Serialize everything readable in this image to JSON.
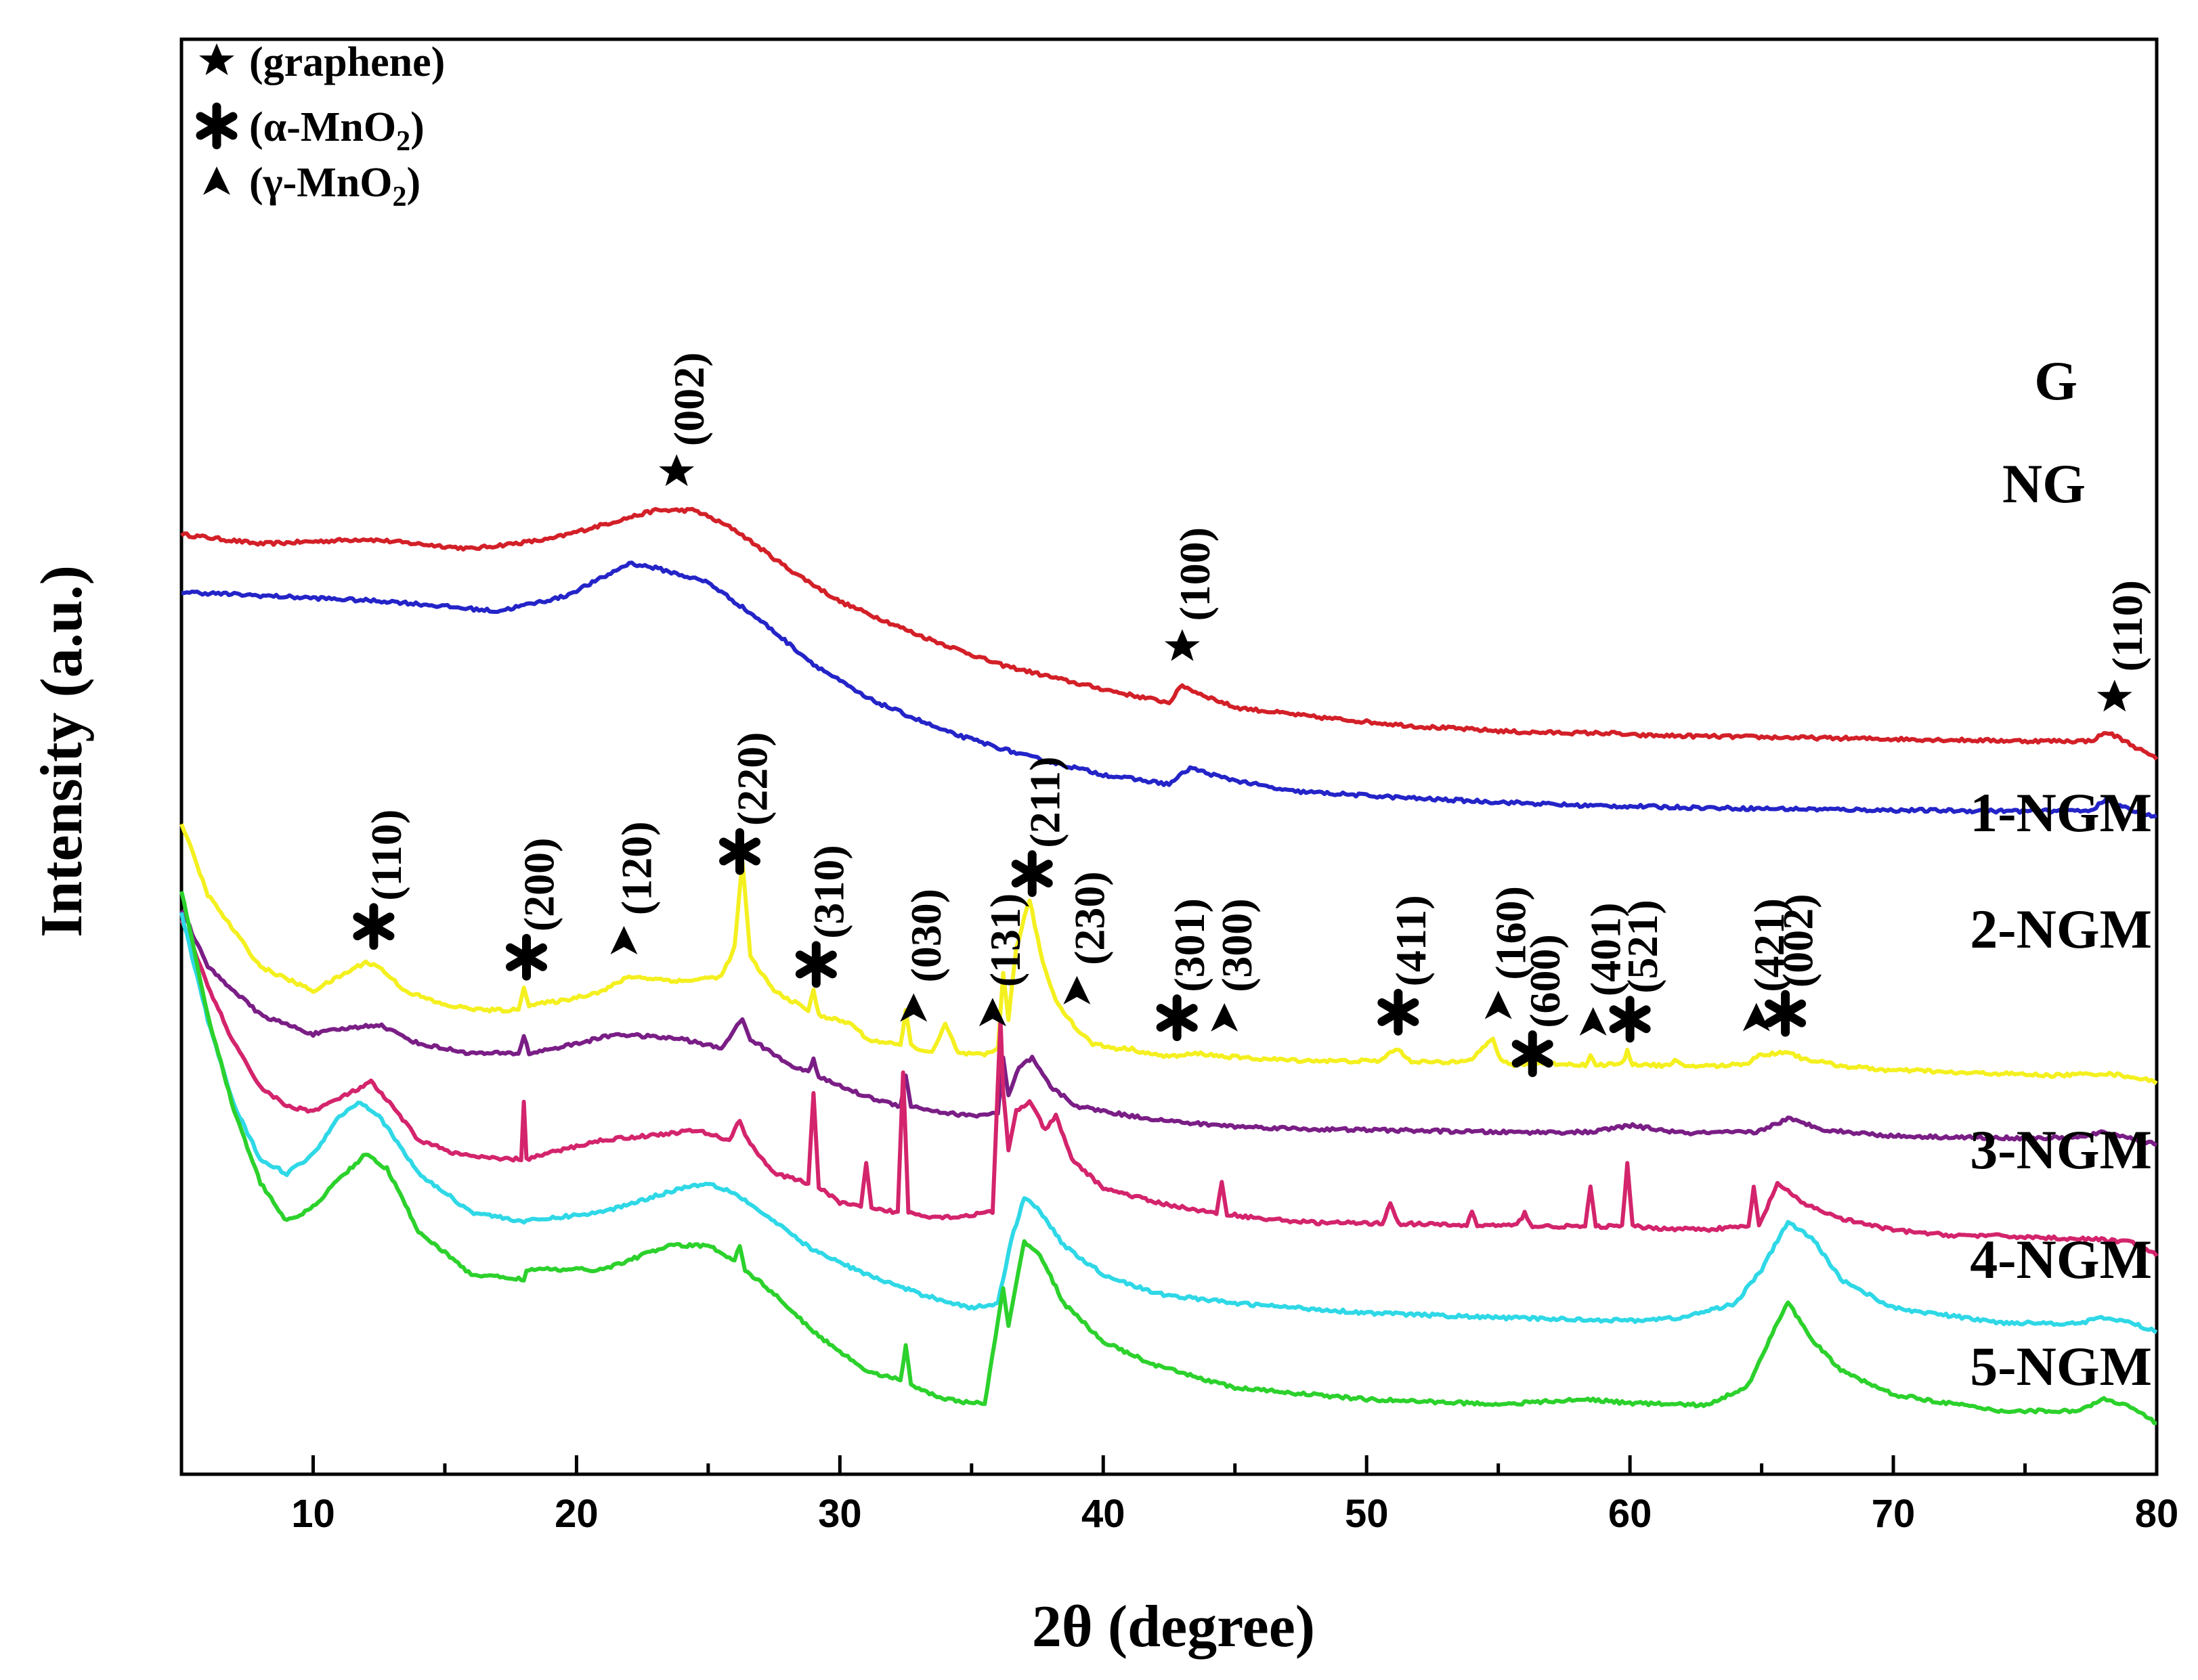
{
  "chart_data": {
    "type": "line",
    "title": "",
    "xlabel": "2θ (degree)",
    "ylabel": "Intensity (a.u.)",
    "xlim": [
      5,
      80
    ],
    "xticks": [
      "10",
      "20",
      "30",
      "40",
      "50",
      "60",
      "70",
      "80"
    ],
    "ylim": [
      0,
      100
    ],
    "grid": false,
    "legend": {
      "placement": "top-left",
      "entries": [
        {
          "symbol": "filled-star",
          "label": "(graphene)"
        },
        {
          "symbol": "asterisk",
          "label": "(α-MnO",
          "sub": "2",
          "suffix": ")"
        },
        {
          "symbol": "arrowhead",
          "label": "(γ-MnO",
          "sub": "2",
          "suffix": ")"
        }
      ]
    },
    "series": [
      {
        "name": "G",
        "color": "#d32028",
        "offset": 69,
        "x": [
          5,
          8,
          12,
          16,
          19,
          21,
          23,
          24.5,
          26,
          28,
          30,
          33,
          36,
          39,
          41,
          42.5,
          43,
          43.5,
          45,
          48,
          52,
          56,
          59.4,
          60,
          65,
          70,
          75,
          77.5,
          78.1,
          78.6,
          80
        ],
        "values": [
          24,
          23,
          23.5,
          22.5,
          23.5,
          25,
          26.5,
          26.5,
          24.5,
          20.5,
          17,
          13.5,
          10.5,
          8.5,
          7.3,
          6.5,
          8.3,
          7.6,
          6,
          5,
          4,
          3.4,
          3.3,
          3.1,
          2.9,
          2.7,
          2.5,
          2.5,
          3.4,
          2.8,
          0.6
        ]
      },
      {
        "name": "NG",
        "color": "#2424c8",
        "offset": 63,
        "x": [
          5,
          9,
          13,
          17,
          19.5,
          21,
          22,
          23,
          25,
          27,
          29,
          31,
          34,
          37,
          40,
          42.5,
          43.3,
          44.5,
          47,
          52,
          58,
          64,
          70,
          75,
          77.5,
          78.1,
          78.7,
          80
        ],
        "values": [
          24,
          23.5,
          23,
          22,
          23.5,
          25.5,
          27,
          26.5,
          25,
          21,
          16.5,
          13,
          9.5,
          7,
          5,
          4,
          5.7,
          4.7,
          3.3,
          2.5,
          1.8,
          1.5,
          1.3,
          1.2,
          1.3,
          2.4,
          1.6,
          0.6
        ]
      },
      {
        "name": "1-NGM",
        "color": "#f4f020",
        "offset": 36,
        "x": [
          5,
          6,
          8,
          10,
          11,
          12,
          12.5,
          13.5,
          15,
          16.5,
          17.8,
          18,
          18.2,
          19.5,
          21,
          22,
          24,
          25.5,
          26,
          26.3,
          26.6,
          27.5,
          28.8,
          29,
          29.2,
          30.5,
          31,
          32.3,
          32.5,
          32.7,
          33.5,
          34,
          34.5,
          35.5,
          36,
          36.2,
          36.4,
          36.7,
          37.2,
          37.7,
          38.2,
          39,
          39.6,
          40.5,
          41,
          42,
          42.8,
          43.6,
          44.5,
          45.5,
          47,
          49,
          50.5,
          51.1,
          51.7,
          53,
          54,
          54.8,
          55.1,
          55.5,
          56.5,
          58.3,
          58.5,
          58.7,
          59.7,
          59.9,
          60.1,
          61.5,
          61.7,
          62,
          63.5,
          64.5,
          64.8,
          65.5,
          66,
          66.5,
          68,
          70,
          71.2,
          72,
          74,
          76,
          78,
          79,
          80
        ],
        "values": [
          27,
          19.5,
          12,
          9.5,
          11,
          12.5,
          12,
          9.5,
          8,
          7.5,
          7.5,
          10,
          8,
          8.5,
          9.5,
          11,
          10.5,
          11,
          14,
          23,
          13,
          9.5,
          7.5,
          9.5,
          7,
          6,
          4.5,
          3.8,
          7.5,
          3.8,
          3,
          6,
          3,
          2.8,
          3.5,
          11.5,
          6.5,
          14,
          19,
          12.5,
          8.5,
          5.5,
          4,
          3.5,
          3.5,
          2.8,
          2.7,
          3,
          2.7,
          2.5,
          2.3,
          2.2,
          2.2,
          3.5,
          2.2,
          2,
          2.5,
          4.5,
          2.2,
          1.8,
          2,
          1.8,
          2.7,
          1.8,
          1.9,
          3.2,
          1.9,
          1.7,
          2.2,
          1.7,
          1.7,
          2,
          2.7,
          3,
          3.2,
          2.5,
          1.7,
          1.2,
          1.2,
          1,
          0.9,
          0.7,
          0.9,
          0.6,
          0
        ]
      },
      {
        "name": "2-NGM",
        "color": "#7a1e86",
        "offset": 29,
        "x": [
          5,
          6,
          8,
          10,
          11,
          12.5,
          14,
          16,
          17.8,
          18,
          18.2,
          20,
          21.5,
          24,
          25.5,
          26,
          26.3,
          26.6,
          28,
          28.8,
          29,
          29.2,
          31,
          32.3,
          32.5,
          32.7,
          34,
          35,
          36,
          36.2,
          36.4,
          36.8,
          37.3,
          38,
          39,
          41,
          43,
          45,
          48,
          51,
          53,
          55,
          58.5,
          60,
          62,
          64.8,
          66,
          67.5,
          70,
          74,
          77,
          78,
          79,
          80
        ],
        "values": [
          25,
          19,
          14,
          12,
          12.5,
          13,
          11,
          10,
          10,
          11.8,
          10,
          11,
          12,
          11.5,
          10.5,
          12.5,
          13.5,
          11.5,
          9,
          8,
          9.5,
          7.5,
          5.5,
          4.5,
          7.8,
          4.5,
          3.8,
          3.5,
          3.8,
          9.5,
          5.5,
          8.5,
          9.5,
          6.5,
          4.5,
          3.5,
          2.8,
          2.4,
          2.1,
          2,
          1.9,
          1.8,
          1.8,
          2.5,
          1.7,
          1.8,
          3.2,
          2,
          1.4,
          1.2,
          1.2,
          1.8,
          1.2,
          0.5
        ]
      },
      {
        "name": "3-NGM",
        "color": "#d3246c",
        "offset": 18,
        "x": [
          5,
          6,
          7,
          8,
          9,
          10,
          11.5,
          12.2,
          13,
          14,
          15.5,
          17,
          17.9,
          18,
          18.1,
          19.5,
          21,
          23,
          24.5,
          25.8,
          26.2,
          26.5,
          27.5,
          28.8,
          29,
          29.2,
          30,
          30.8,
          31,
          31.2,
          32.2,
          32.4,
          32.6,
          33.5,
          34.5,
          35.8,
          36.1,
          36.2,
          36.4,
          36.7,
          37.2,
          37.8,
          38.2,
          38.8,
          40,
          42,
          44.3,
          44.5,
          44.7,
          46,
          48,
          50.6,
          50.9,
          51.2,
          53.8,
          54,
          54.2,
          55.7,
          56,
          56.3,
          58.3,
          58.5,
          58.7,
          59.7,
          59.9,
          60.1,
          61,
          63,
          64.5,
          64.7,
          64.9,
          65.6,
          66.5,
          68,
          70,
          72,
          74,
          76,
          78,
          79,
          80
        ],
        "values": [
          35,
          28,
          22,
          17.5,
          15.5,
          15,
          17,
          18,
          15.5,
          12,
          10.5,
          10,
          10,
          16,
          10,
          11,
          12,
          12.5,
          13,
          12,
          14,
          12,
          8.5,
          7.5,
          17,
          7,
          5.5,
          5,
          9.5,
          4.8,
          4.5,
          19,
          4.5,
          4,
          4,
          4.5,
          24.5,
          17,
          11,
          15,
          16,
          13,
          14.5,
          10,
          7,
          5.5,
          4.3,
          7.5,
          4.3,
          3.8,
          3.4,
          3.3,
          5.5,
          3.3,
          3.1,
          4.5,
          3.1,
          3.1,
          4.4,
          3,
          3,
          7,
          3,
          3,
          9.5,
          3,
          2.8,
          2.7,
          3,
          7,
          3,
          7.5,
          5.5,
          3.8,
          2.6,
          2.1,
          2,
          1.8,
          1.6,
          1.4,
          0
        ]
      },
      {
        "name": "4-NGM",
        "color": "#2fd8e6",
        "offset": 9.5,
        "x": [
          5,
          6,
          7,
          8,
          9,
          10,
          11,
          11.8,
          12.5,
          14,
          16,
          18,
          21,
          24,
          25,
          26,
          27.5,
          29,
          31,
          33,
          35,
          36,
          36.5,
          37,
          37.5,
          38.5,
          40,
          42,
          45,
          50,
          55,
          60,
          62,
          64,
          65,
          66,
          67,
          68,
          70,
          74,
          77,
          78,
          79,
          80
        ],
        "values": [
          44,
          33,
          24,
          18.5,
          17,
          19,
          23,
          24.5,
          23,
          17,
          13,
          12,
          13,
          15.5,
          16,
          15,
          12,
          9,
          6.5,
          4.5,
          3,
          3.5,
          10,
          14.5,
          13.5,
          9.5,
          6.5,
          4.5,
          3.5,
          2.5,
          2,
          1.7,
          2,
          3.5,
          7,
          12,
          10,
          6,
          3,
          1.5,
          1.4,
          2,
          1.5,
          0.5
        ]
      },
      {
        "name": "5-NGM",
        "color": "#2cd12c",
        "offset": 0,
        "x": [
          5,
          6,
          7,
          8,
          9,
          10,
          11,
          12,
          12.8,
          14,
          16,
          18,
          18.1,
          21,
          23.5,
          25,
          26,
          26.2,
          26.4,
          27.5,
          29,
          31,
          32.3,
          32.5,
          32.7,
          34,
          35.5,
          36.2,
          36.4,
          37,
          37.6,
          38.5,
          40,
          42,
          45,
          50,
          55,
          58.5,
          60,
          63,
          64.5,
          65.5,
          66,
          67,
          68,
          70,
          74,
          77,
          78,
          79,
          80
        ],
        "values": [
          56,
          43,
          33,
          25.5,
          21.5,
          23,
          26,
          28.5,
          27,
          20.5,
          16,
          15.5,
          16.5,
          16.5,
          19,
          19,
          17.5,
          19,
          16.5,
          14,
          10,
          6,
          5,
          8.5,
          4.5,
          3,
          2.5,
          14.5,
          10.5,
          19.5,
          18,
          13,
          9,
          6.5,
          4.2,
          3,
          2.5,
          3,
          2.6,
          2.4,
          4.5,
          10.5,
          13,
          9,
          6,
          3.5,
          1.8,
          1.8,
          3,
          2.2,
          0.5
        ]
      }
    ],
    "series_labels": {
      "G": "G",
      "NG": "NG",
      "1-NGM": "1-NGM",
      "2-NGM": "2-NGM",
      "3-NGM": "3-NGM",
      "4-NGM": "4-NGM",
      "5-NGM": "5-NGM"
    },
    "annotations": [
      {
        "label": "(002)",
        "symbol": "filled-star",
        "x": 23.8,
        "series": "G",
        "above": 4
      },
      {
        "label": "(100)",
        "symbol": "filled-star",
        "x": 43,
        "series": "G",
        "above": 4
      },
      {
        "label": "(110)",
        "symbol": "filled-star",
        "x": 78.4,
        "series": "G",
        "above": 4
      },
      {
        "label": "(110)",
        "symbol": "asterisk",
        "x": 12.3,
        "series": "1-NGM",
        "above": 4
      },
      {
        "label": "(200)",
        "symbol": "asterisk",
        "x": 18.1,
        "series": "1-NGM",
        "above": 4
      },
      {
        "label": "(120)",
        "symbol": "arrowhead",
        "x": 21.8,
        "series": "1-NGM",
        "above": 4
      },
      {
        "label": "(220)",
        "symbol": "asterisk",
        "x": 26.2,
        "series": "1-NGM",
        "above": 4
      },
      {
        "label": "(310)",
        "symbol": "asterisk",
        "x": 29.1,
        "series": "1-NGM",
        "above": 4
      },
      {
        "label": "(030)",
        "symbol": "arrowhead",
        "x": 32.8,
        "series": "1-NGM",
        "above": 4
      },
      {
        "label": "(131)",
        "symbol": "arrowhead",
        "x": 35.8,
        "series": "1-NGM",
        "above": 4
      },
      {
        "label": "(211)",
        "symbol": "asterisk",
        "x": 37.3,
        "series": "1-NGM",
        "above": 4
      },
      {
        "label": "(230)",
        "symbol": "arrowhead",
        "x": 39,
        "series": "1-NGM",
        "above": 4
      },
      {
        "label": "(301)",
        "symbol": "asterisk",
        "x": 42.8,
        "series": "1-NGM",
        "above": 4
      },
      {
        "label": "(300)",
        "symbol": "arrowhead",
        "x": 44.6,
        "series": "1-NGM",
        "above": 4
      },
      {
        "label": "(411)",
        "symbol": "asterisk",
        "x": 51.2,
        "series": "1-NGM",
        "above": 4
      },
      {
        "label": "(160)",
        "symbol": "arrowhead",
        "x": 55,
        "series": "1-NGM",
        "above": 5
      },
      {
        "label": "(600)",
        "symbol": "asterisk",
        "x": 56.3,
        "series": "1-NGM",
        "above": 1
      },
      {
        "label": "(401)",
        "symbol": "arrowhead",
        "x": 58.6,
        "series": "1-NGM",
        "above": 4
      },
      {
        "label": "(521)",
        "symbol": "asterisk",
        "x": 60,
        "series": "1-NGM",
        "above": 4
      },
      {
        "label": "(421)",
        "symbol": "arrowhead",
        "x": 64.8,
        "series": "1-NGM",
        "above": 4
      },
      {
        "label": "(002)",
        "symbol": "asterisk",
        "x": 65.9,
        "series": "1-NGM",
        "above": 4
      }
    ]
  }
}
